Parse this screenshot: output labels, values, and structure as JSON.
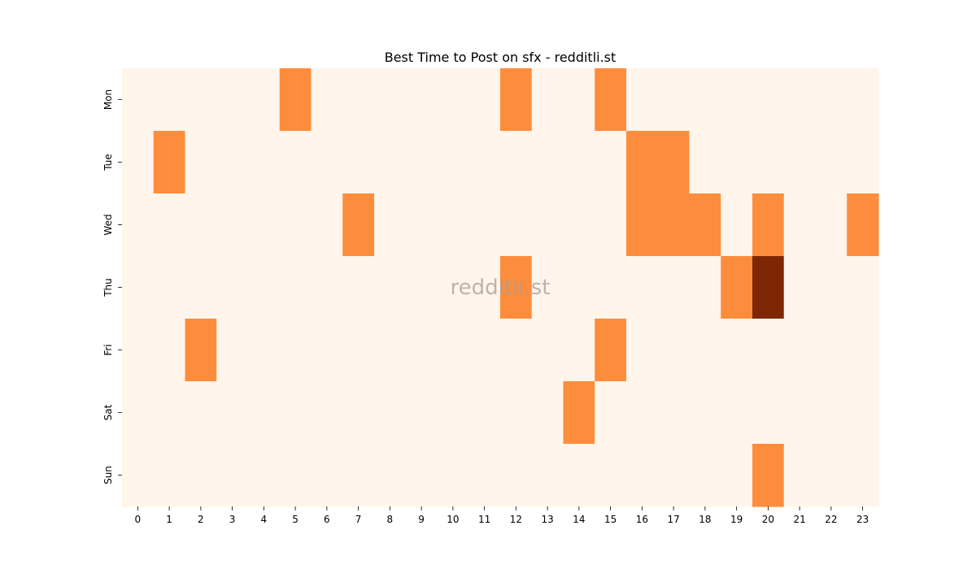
{
  "chart_data": {
    "type": "heatmap",
    "title": "Best Time to Post on sfx - redditli.st",
    "watermark": "redditli.st",
    "xlabel": "",
    "ylabel": "",
    "x_categories": [
      "0",
      "1",
      "2",
      "3",
      "4",
      "5",
      "6",
      "7",
      "8",
      "9",
      "10",
      "11",
      "12",
      "13",
      "14",
      "15",
      "16",
      "17",
      "18",
      "19",
      "20",
      "21",
      "22",
      "23"
    ],
    "y_categories": [
      "Mon",
      "Tue",
      "Wed",
      "Thu",
      "Fri",
      "Sat",
      "Sun"
    ],
    "values": [
      [
        0,
        0,
        0,
        0,
        0,
        1,
        0,
        0,
        0,
        0,
        0,
        0,
        1,
        0,
        0,
        1,
        0,
        0,
        0,
        0,
        0,
        0,
        0,
        0
      ],
      [
        0,
        1,
        0,
        0,
        0,
        0,
        0,
        0,
        0,
        0,
        0,
        0,
        0,
        0,
        0,
        0,
        1,
        1,
        0,
        0,
        0,
        0,
        0,
        0
      ],
      [
        0,
        0,
        0,
        0,
        0,
        0,
        0,
        1,
        0,
        0,
        0,
        0,
        0,
        0,
        0,
        0,
        1,
        1,
        1,
        0,
        1,
        0,
        0,
        1
      ],
      [
        0,
        0,
        0,
        0,
        0,
        0,
        0,
        0,
        0,
        0,
        0,
        0,
        1,
        0,
        0,
        0,
        0,
        0,
        0,
        1,
        2,
        0,
        0,
        0
      ],
      [
        0,
        0,
        1,
        0,
        0,
        0,
        0,
        0,
        0,
        0,
        0,
        0,
        0,
        0,
        0,
        1,
        0,
        0,
        0,
        0,
        0,
        0,
        0,
        0
      ],
      [
        0,
        0,
        0,
        0,
        0,
        0,
        0,
        0,
        0,
        0,
        0,
        0,
        0,
        0,
        1,
        0,
        0,
        0,
        0,
        0,
        0,
        0,
        0,
        0
      ],
      [
        0,
        0,
        0,
        0,
        0,
        0,
        0,
        0,
        0,
        0,
        0,
        0,
        0,
        0,
        0,
        0,
        0,
        0,
        0,
        0,
        1,
        0,
        0,
        0
      ]
    ],
    "colors": {
      "0": "#fff5eb",
      "1": "#fd8d3c",
      "2": "#7f2704"
    },
    "grid": false,
    "legend": "none"
  }
}
